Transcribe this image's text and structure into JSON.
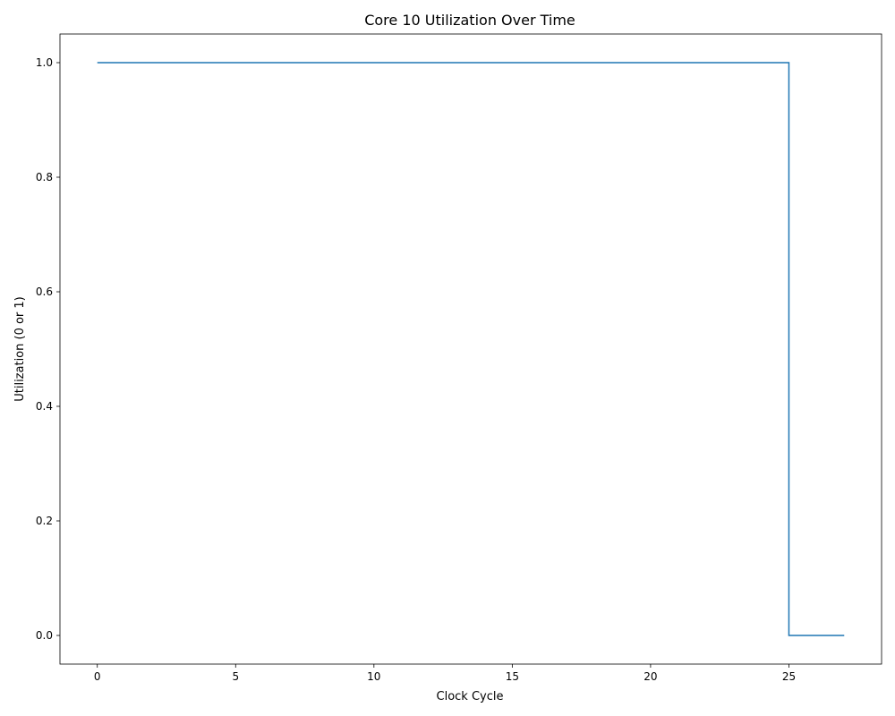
{
  "chart_data": {
    "type": "line",
    "title": "Core 10 Utilization Over Time",
    "xlabel": "Clock Cycle",
    "ylabel": "Utilization (0 or 1)",
    "xlim": [
      -1.35,
      28.35
    ],
    "ylim": [
      -0.05,
      1.05
    ],
    "x_ticks": [
      0,
      5,
      10,
      15,
      20,
      25
    ],
    "x_tick_labels": [
      "0",
      "5",
      "10",
      "15",
      "20",
      "25"
    ],
    "y_ticks": [
      0.0,
      0.2,
      0.4,
      0.6,
      0.8,
      1.0
    ],
    "y_tick_labels": [
      "0.0",
      "0.2",
      "0.4",
      "0.6",
      "0.8",
      "1.0"
    ],
    "grid": false,
    "step": "post",
    "series": [
      {
        "color": "#1f77b4",
        "x": [
          0,
          1,
          2,
          3,
          4,
          5,
          6,
          7,
          8,
          9,
          10,
          11,
          12,
          13,
          14,
          15,
          16,
          17,
          18,
          19,
          20,
          21,
          22,
          23,
          24,
          25,
          26,
          27
        ],
        "y": [
          1,
          1,
          1,
          1,
          1,
          1,
          1,
          1,
          1,
          1,
          1,
          1,
          1,
          1,
          1,
          1,
          1,
          1,
          1,
          1,
          1,
          1,
          1,
          1,
          1,
          0,
          0,
          0
        ]
      }
    ]
  }
}
